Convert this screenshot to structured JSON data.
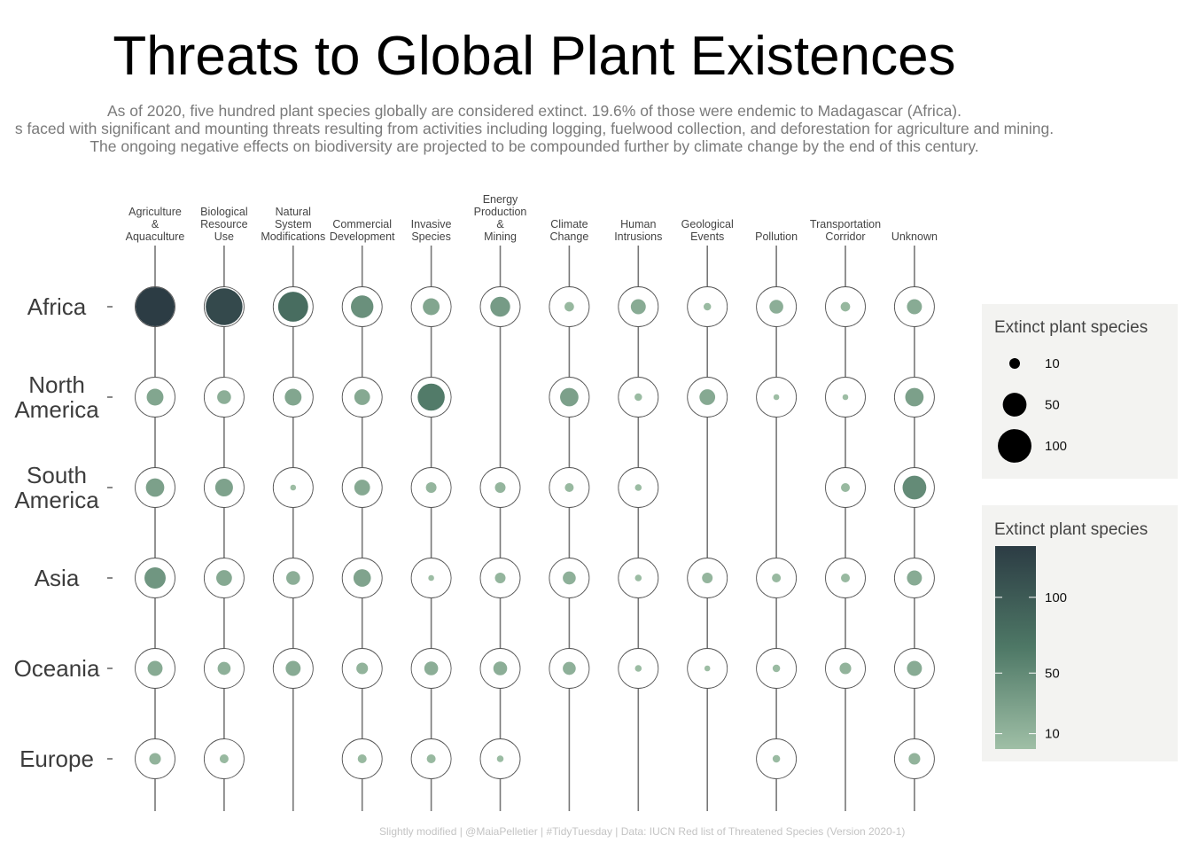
{
  "title": "Threats to Global Plant Existences",
  "subtitle": [
    "As of 2020, five hundred plant species globally are considered extinct. 19.6% of those were endemic to Madagascar (Africa).",
    "s faced with significant and mounting threats resulting from activities including logging, fuelwood collection, and deforestation for agriculture and mining.",
    "The ongoing negative effects on biodiversity are projected to be compounded further by climate change by the end of this century."
  ],
  "caption": "Slightly modified | @MaiaPelletier | #TidyTuesday | Data: IUCN Red list of Threatened Species (Version 2020-1)",
  "colors": {
    "low": "#9fbfa6",
    "mid": "#4e7866",
    "high": "#2c3c44",
    "ring": "#555555",
    "spine": "#777777"
  },
  "chart_data": {
    "type": "scatter",
    "columns": [
      [
        "Agriculture",
        "&",
        "Aquaculture"
      ],
      [
        "Biological",
        "Resource",
        "Use"
      ],
      [
        "Natural",
        "System",
        "Modifications"
      ],
      [
        "Commercial",
        "Development"
      ],
      [
        "Invasive",
        "Species"
      ],
      [
        "Energy",
        "Production",
        "&",
        "Mining"
      ],
      [
        "Climate",
        "Change"
      ],
      [
        "Human",
        "Intrusions"
      ],
      [
        "Geological",
        "Events"
      ],
      [
        "Pollution"
      ],
      [
        "Transportation",
        "Corridor"
      ],
      [
        "Unknown"
      ]
    ],
    "rows": [
      [
        "Africa"
      ],
      [
        "North",
        "America"
      ],
      [
        "South",
        "America"
      ],
      [
        "Asia"
      ],
      [
        "Oceania"
      ],
      [
        "Europe"
      ]
    ],
    "values": [
      [
        135,
        120,
        80,
        45,
        25,
        35,
        8,
        20,
        5,
        17,
        8,
        20
      ],
      [
        25,
        17,
        25,
        22,
        65,
        null,
        30,
        5,
        22,
        3,
        3,
        30
      ],
      [
        30,
        28,
        3,
        22,
        10,
        10,
        7,
        4,
        null,
        null,
        7,
        50
      ],
      [
        40,
        22,
        17,
        27,
        3,
        10,
        15,
        4,
        10,
        7,
        7,
        20
      ],
      [
        20,
        15,
        20,
        12,
        17,
        17,
        15,
        4,
        3,
        5,
        12,
        20
      ],
      [
        12,
        7,
        null,
        7,
        7,
        4,
        null,
        null,
        null,
        5,
        null,
        12
      ]
    ],
    "legend_size": {
      "title": "Extinct plant species",
      "breaks": [
        10,
        50,
        100
      ]
    },
    "legend_color": {
      "title": "Extinct plant species",
      "breaks": [
        10,
        50,
        100
      ],
      "limits": [
        1,
        135
      ]
    }
  }
}
